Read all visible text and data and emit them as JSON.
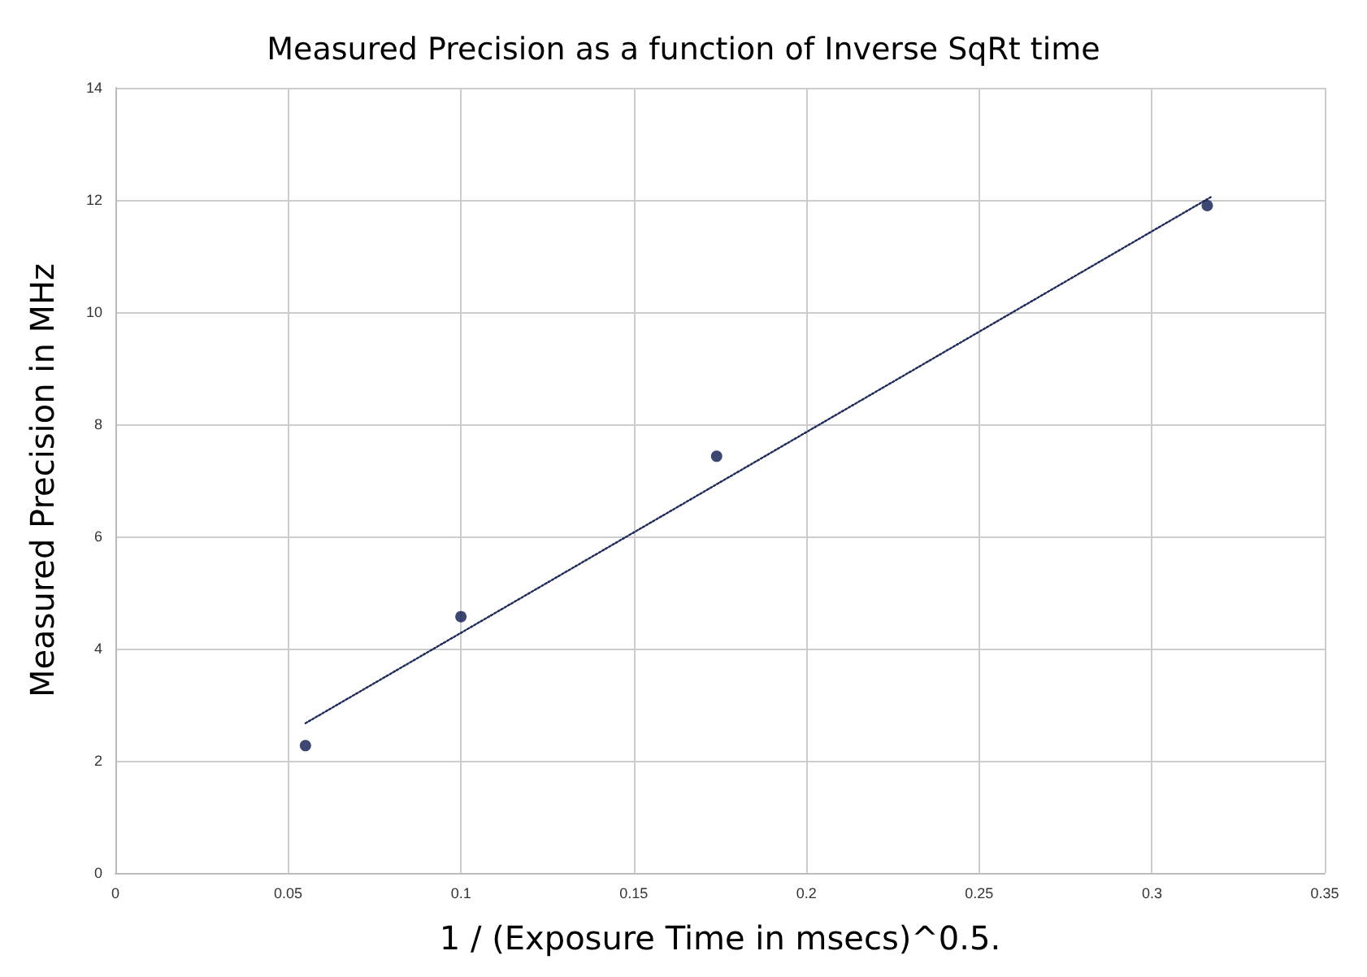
{
  "chart_data": {
    "type": "scatter",
    "title": "Measured Precision as a function of Inverse SqRt time",
    "xlabel": "1 / (Exposure Time in msecs)^0.5.",
    "ylabel": "Measured Precision in MHz",
    "series": [
      {
        "color": "#0b1a4f",
        "x": [
          0.055,
          0.1,
          0.174,
          0.316
        ],
        "values": [
          2.27,
          4.57,
          7.43,
          11.9
        ],
        "marker": "circle"
      },
      {
        "type": "line",
        "color": "#1f2a5c",
        "x": [
          0.055,
          0.317
        ],
        "values": [
          2.67,
          12.05
        ],
        "line_style": "dotted",
        "marker": "none"
      }
    ],
    "xlim": [
      0,
      0.35
    ],
    "xticks": [
      0,
      0.05,
      0.1,
      0.15,
      0.2,
      0.25,
      0.3,
      0.35
    ],
    "ylim": [
      0,
      14
    ],
    "yticks": [
      0,
      2,
      4,
      6,
      8,
      10,
      12,
      14
    ],
    "grid": true
  }
}
